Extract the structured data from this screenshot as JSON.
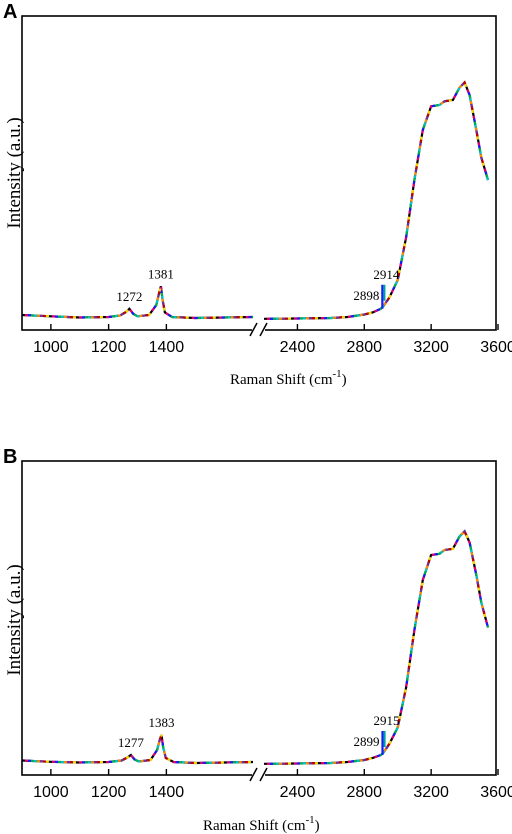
{
  "chart_data": [
    {
      "panel": "A",
      "type": "line",
      "xlabel": "Raman Shift (cm",
      "xlabel_sup": "-1",
      "ylabel": "Intensity (a.u.)",
      "axis_break": true,
      "xlim_left": [
        900,
        1700
      ],
      "xlim_right": [
        2200,
        3600
      ],
      "xticks": [
        1000,
        1200,
        1400,
        2400,
        2800,
        3200,
        3600
      ],
      "ylim": [
        0,
        1
      ],
      "grid": false,
      "annotations": [
        {
          "text": "1272",
          "x": 1272
        },
        {
          "text": "1381",
          "x": 1381
        },
        {
          "text": "2898",
          "x": 2898
        },
        {
          "text": "2914",
          "x": 2914
        }
      ],
      "series": [
        {
          "x": [
            900,
            1000,
            1100,
            1200,
            1240,
            1260,
            1272,
            1285,
            1300,
            1340,
            1365,
            1375,
            1381,
            1387,
            1395,
            1420,
            1500,
            1600,
            1700
          ],
          "y": [
            0.02,
            0.015,
            0.01,
            0.012,
            0.018,
            0.032,
            0.045,
            0.025,
            0.015,
            0.02,
            0.06,
            0.11,
            0.135,
            0.08,
            0.03,
            0.012,
            0.008,
            0.01,
            0.012
          ],
          "x2": [
            2200,
            2400,
            2600,
            2700,
            2800,
            2850,
            2898,
            2914,
            2950,
            3000,
            3050,
            3100,
            3150,
            3200,
            3250,
            3280,
            3330,
            3370,
            3400,
            3430,
            3470,
            3500,
            3540
          ],
          "y2": [
            0.005,
            0.006,
            0.008,
            0.012,
            0.022,
            0.03,
            0.045,
            0.055,
            0.09,
            0.16,
            0.33,
            0.56,
            0.76,
            0.855,
            0.86,
            0.875,
            0.88,
            0.93,
            0.95,
            0.9,
            0.76,
            0.65,
            0.56
          ]
        }
      ]
    },
    {
      "panel": "B",
      "type": "line",
      "xlabel": "Raman Shift (cm",
      "xlabel_sup": "-1",
      "ylabel": "Intensity (a.u.)",
      "axis_break": true,
      "xlim_left": [
        900,
        1700
      ],
      "xlim_right": [
        2200,
        3600
      ],
      "xticks": [
        1000,
        1200,
        1400,
        2400,
        2800,
        3200,
        3600
      ],
      "ylim": [
        0,
        1
      ],
      "grid": false,
      "annotations": [
        {
          "text": "1277",
          "x": 1277
        },
        {
          "text": "1383",
          "x": 1383
        },
        {
          "text": "2899",
          "x": 2899
        },
        {
          "text": "2915",
          "x": 2915
        }
      ],
      "series": [
        {
          "x": [
            900,
            1000,
            1100,
            1200,
            1245,
            1265,
            1277,
            1290,
            1305,
            1345,
            1368,
            1377,
            1383,
            1389,
            1398,
            1425,
            1500,
            1600,
            1700
          ],
          "y": [
            0.018,
            0.013,
            0.01,
            0.012,
            0.018,
            0.03,
            0.04,
            0.022,
            0.014,
            0.02,
            0.06,
            0.1,
            0.12,
            0.07,
            0.028,
            0.012,
            0.008,
            0.01,
            0.012
          ],
          "x2": [
            2200,
            2400,
            2600,
            2700,
            2800,
            2850,
            2899,
            2915,
            2950,
            3000,
            3050,
            3100,
            3150,
            3200,
            3250,
            3280,
            3330,
            3370,
            3400,
            3430,
            3470,
            3500,
            3540
          ],
          "y2": [
            0.005,
            0.006,
            0.008,
            0.012,
            0.02,
            0.028,
            0.04,
            0.05,
            0.085,
            0.15,
            0.31,
            0.54,
            0.74,
            0.84,
            0.845,
            0.86,
            0.865,
            0.915,
            0.935,
            0.89,
            0.76,
            0.65,
            0.55
          ]
        }
      ]
    }
  ]
}
